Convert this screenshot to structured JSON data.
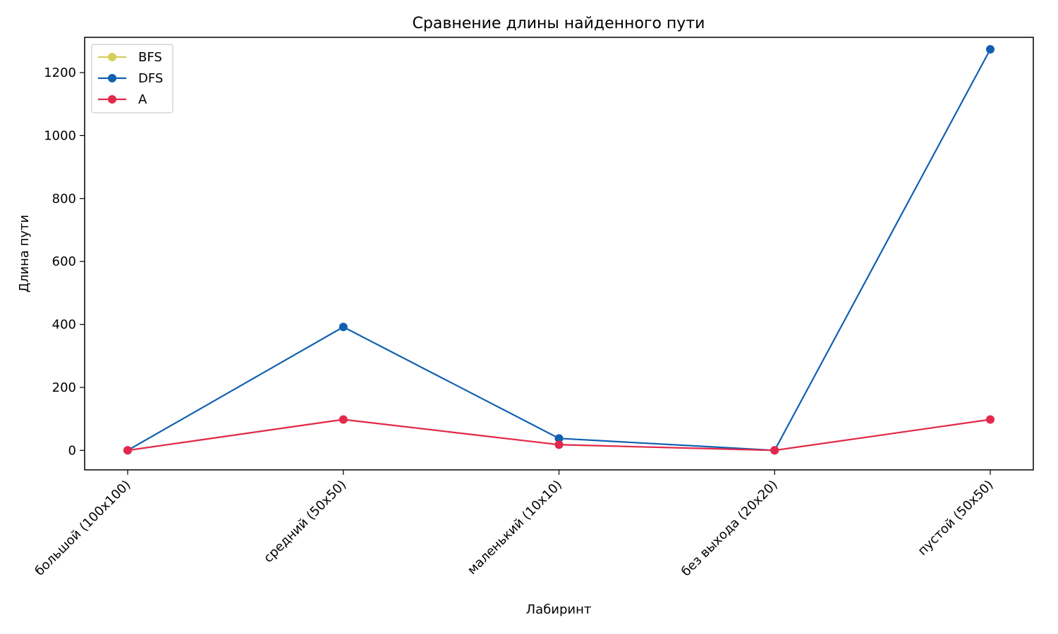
{
  "chart_data": {
    "type": "line",
    "title": "Сравнение длины найденного пути",
    "xlabel": "Лабиринт",
    "ylabel": "Длина пути",
    "categories": [
      "большой (100x100)",
      "средний (50x50)",
      "маленький (10x10)",
      "без выхода (20x20)",
      "пустой (50x50)"
    ],
    "ylim": [
      -62,
      1312
    ],
    "yticks": [
      0,
      200,
      400,
      600,
      800,
      1000,
      1200
    ],
    "grid": false,
    "legend_position": "top-left",
    "series": [
      {
        "name": "BFS",
        "values": [
          0,
          98,
          18,
          0,
          98
        ],
        "color": "#d4cf5a"
      },
      {
        "name": "DFS",
        "values": [
          0,
          392,
          38,
          0,
          1274
        ],
        "color": "#1060b0"
      },
      {
        "name": "A",
        "values": [
          0,
          98,
          18,
          0,
          98
        ],
        "color": "#e3284e"
      }
    ]
  }
}
